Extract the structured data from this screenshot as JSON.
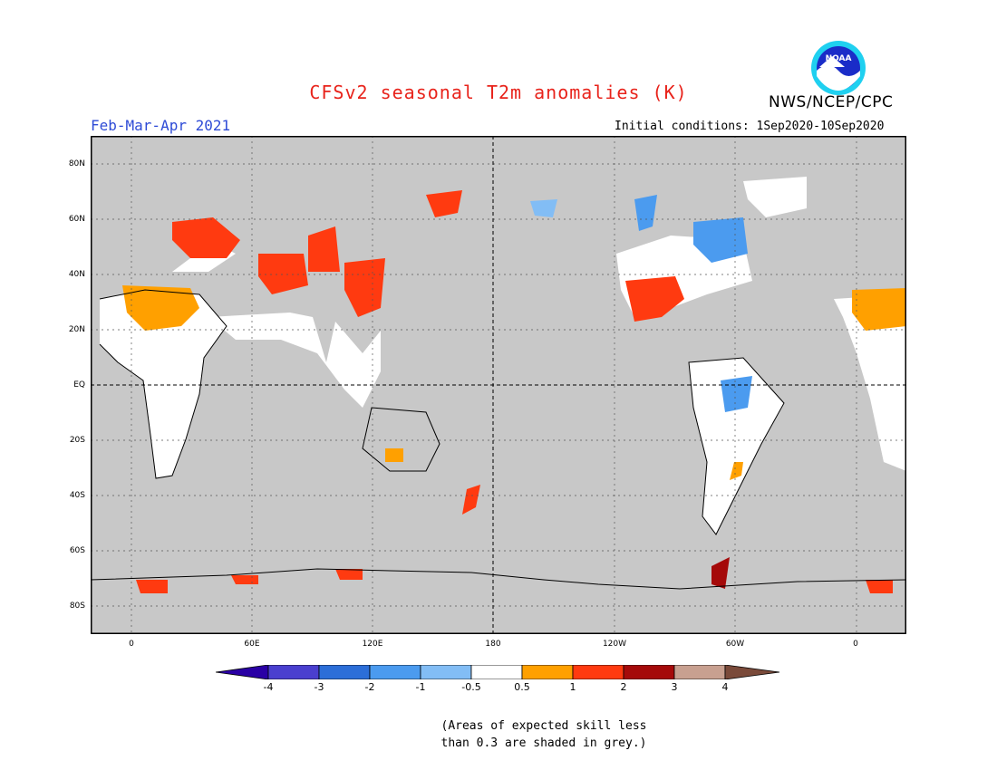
{
  "header": {
    "title": "CFSv2 seasonal T2m anomalies (K)",
    "agency": "NWS/NCEP/CPC",
    "season": "Feb-Mar-Apr 2021",
    "initial_conditions": "Initial conditions: 1Sep2020-10Sep2020",
    "logo_text": "NOAA"
  },
  "map": {
    "lat_labels": [
      "80N",
      "60N",
      "40N",
      "20N",
      "EQ",
      "20S",
      "40S",
      "60S",
      "80S"
    ],
    "lon_labels": [
      "0",
      "60E",
      "120E",
      "180",
      "120W",
      "60W",
      "0"
    ]
  },
  "legend": {
    "labels": [
      "-4",
      "-3",
      "-2",
      "-1",
      "-0.5",
      "0.5",
      "1",
      "2",
      "3",
      "4"
    ],
    "colors": [
      "#2a00a5",
      "#4a3fcf",
      "#2c6ed8",
      "#4b9bef",
      "#82bdf5",
      "#ffffff",
      "#ffa000",
      "#ff3a10",
      "#a50a0a",
      "#c8a090",
      "#7a4a3a"
    ]
  },
  "note": {
    "line1": "(Areas of expected skill less",
    "line2": "than 0.3 are shaded in grey.)"
  },
  "colors": {
    "ocean_grey": "#c8c8c8",
    "white_land": "#ffffff",
    "title_red": "#e8231b",
    "season_blue": "#2e4bd6"
  }
}
